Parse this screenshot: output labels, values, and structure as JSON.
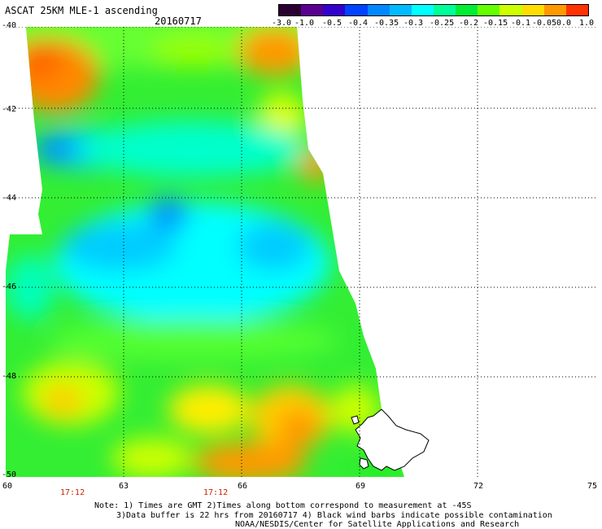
{
  "header": {
    "title": "ASCAT 25KM MLE-1 ascending",
    "date": "20160717"
  },
  "colorbar": {
    "labels": [
      "-3.0",
      "-1.0",
      "-0.5",
      "-0.4",
      "-0.35",
      "-0.3",
      "-0.25",
      "-0.2",
      "-0.15",
      "-0.1",
      "-0.05",
      "0.0",
      "1.0"
    ],
    "colors": [
      "#2a0033",
      "#5a0090",
      "#3300cc",
      "#0044ff",
      "#0088ff",
      "#00bbff",
      "#00ffff",
      "#00ff99",
      "#00ee33",
      "#66ff00",
      "#ccff00",
      "#ffdd00",
      "#ff9900",
      "#ff3300"
    ]
  },
  "map": {
    "lat_ticks": [
      "-40",
      "-42",
      "-44",
      "-46",
      "-48",
      "-50"
    ],
    "lon_ticks": [
      "60",
      "63",
      "66",
      "69",
      "72",
      "75"
    ],
    "pass_times": [
      "17:12",
      "17:12"
    ]
  },
  "notes": {
    "line1": "Note: 1) Times are GMT 2)Times along bottom correspond to measurement at -45S",
    "line2": "3)Data buffer is 22 hrs from 20160717 4) Black wind barbs indicate possible contamination",
    "line3": "NOAA/NESDIS/Center for Satellite Applications and Research"
  }
}
